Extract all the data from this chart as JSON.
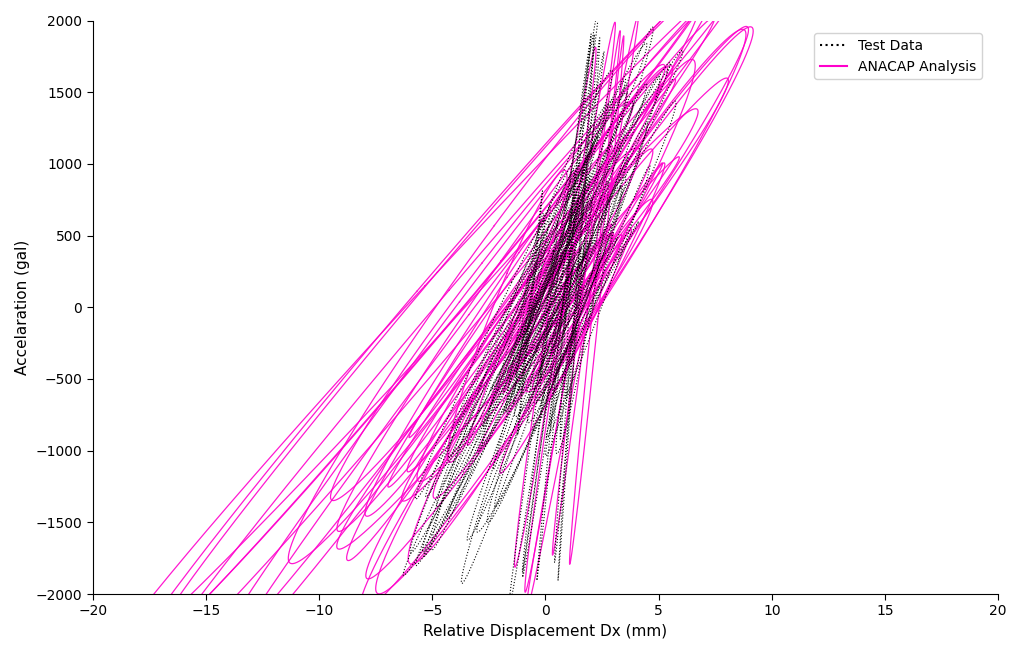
{
  "title": "",
  "xlabel": "Relative Displacement Dx (mm)",
  "ylabel": "Accelaration (gal)",
  "xlim": [
    -20,
    20
  ],
  "ylim": [
    -2000,
    2000
  ],
  "xticks": [
    -20,
    -15,
    -10,
    -5,
    0,
    5,
    10,
    15,
    20
  ],
  "yticks": [
    -2000,
    -1500,
    -1000,
    -500,
    0,
    500,
    1000,
    1500,
    2000
  ],
  "test_color": "#000000",
  "anacap_color": "#FF00CC",
  "legend_labels": [
    "Test Data",
    "ANACAP Analysis"
  ],
  "background_color": "#ffffff"
}
